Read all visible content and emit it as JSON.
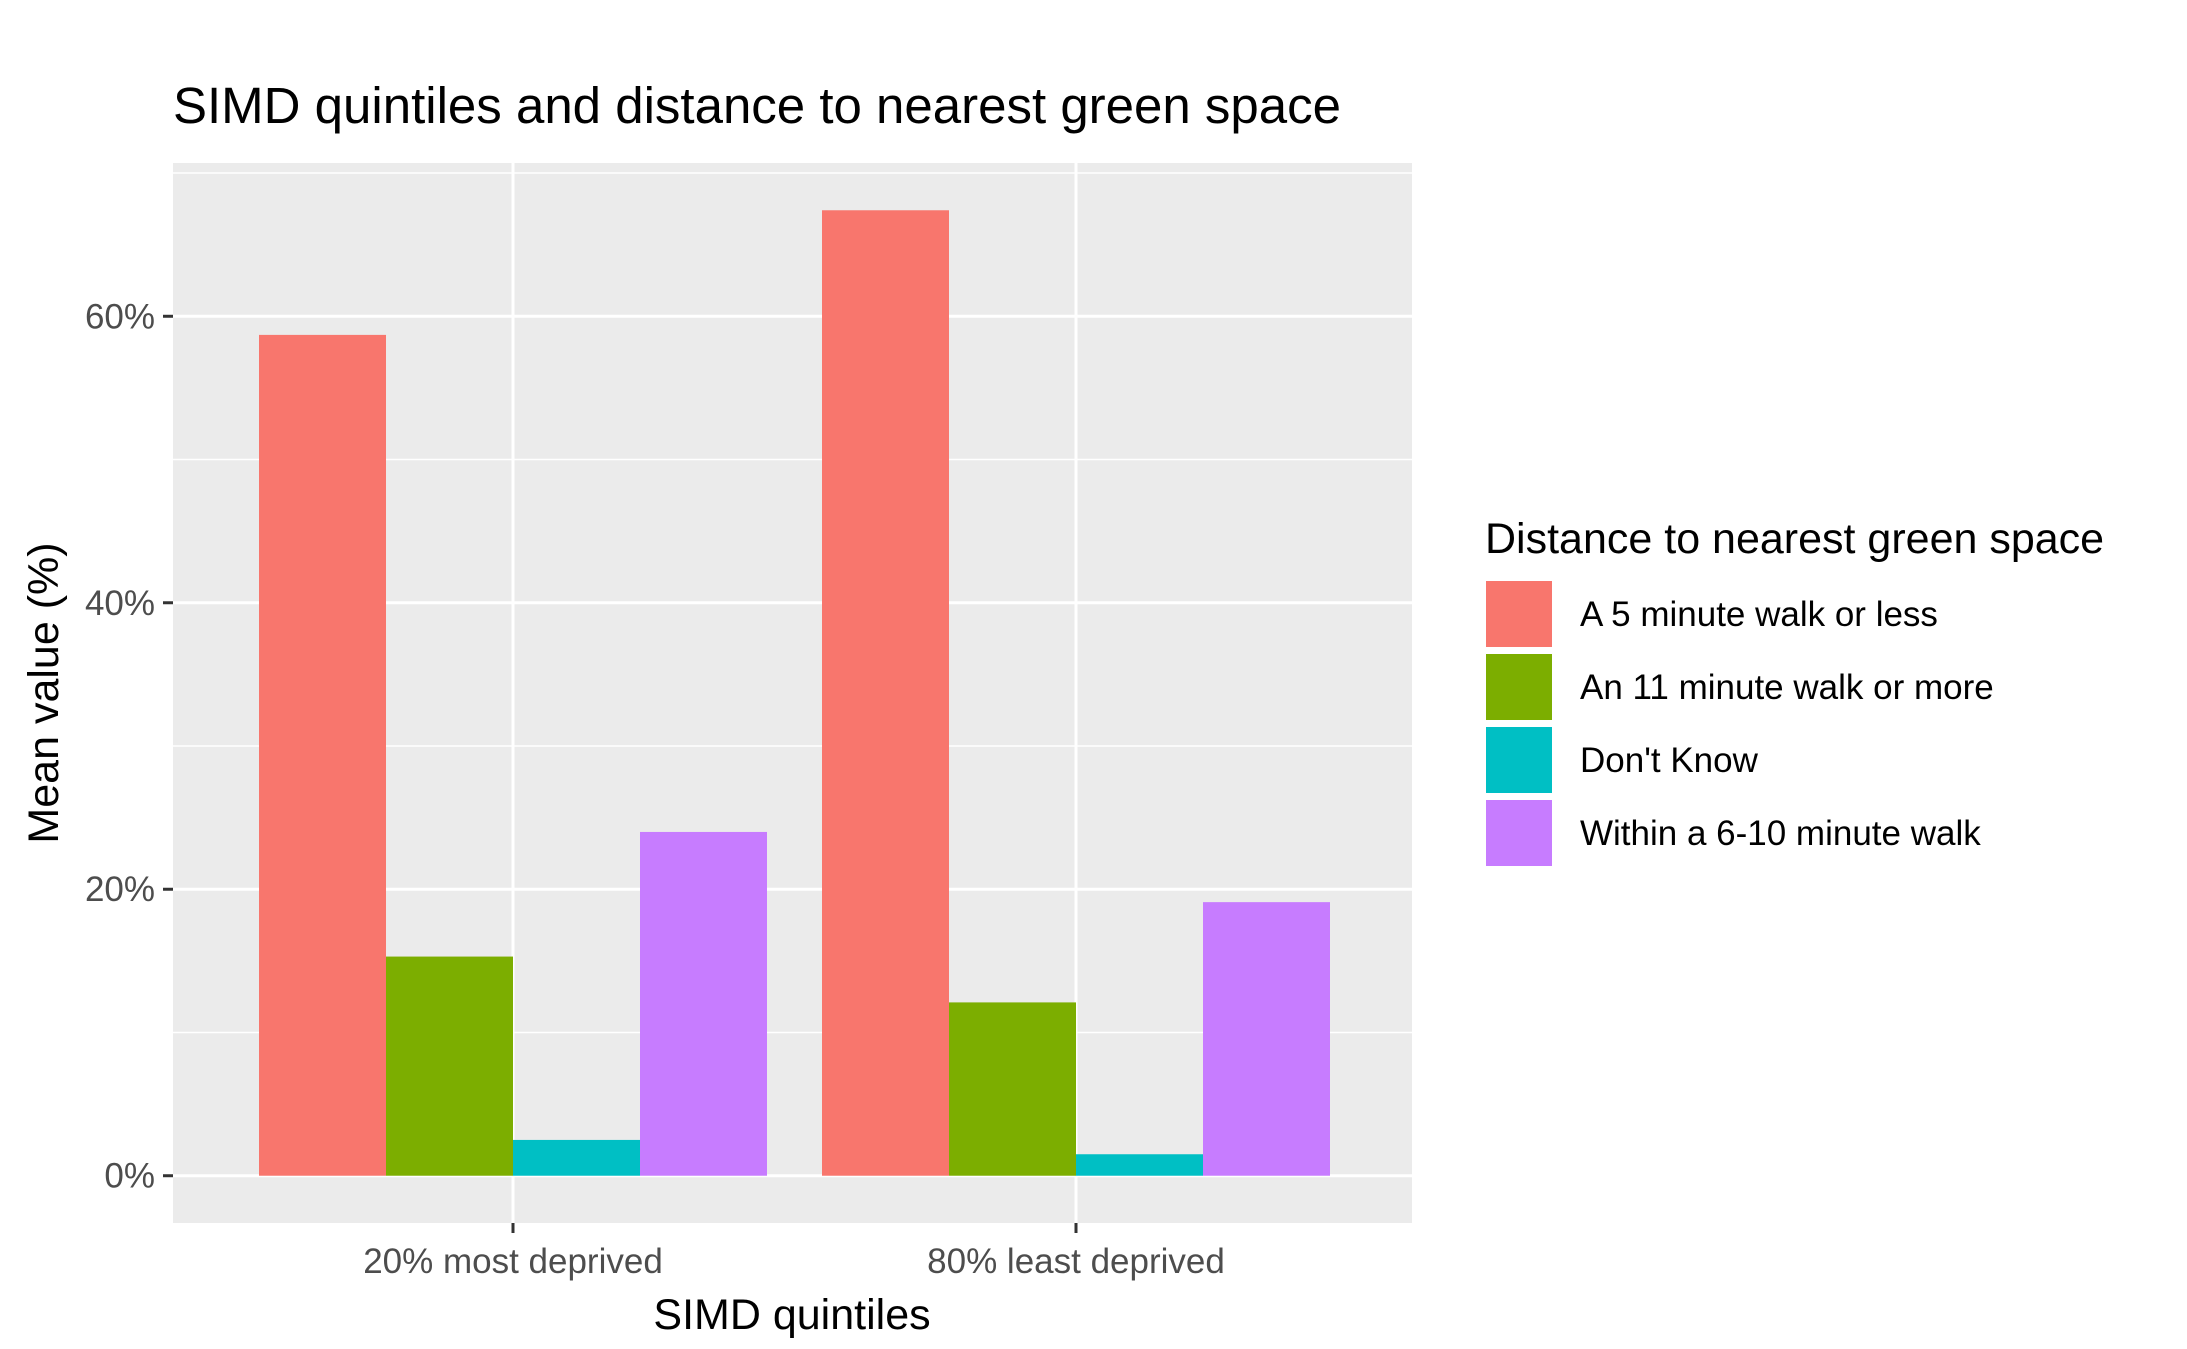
{
  "chart_data": {
    "type": "bar",
    "title": "SIMD quintiles and distance to nearest green space",
    "xlabel": "SIMD quintiles",
    "ylabel": "Mean value (%)",
    "categories": [
      "20% most deprived",
      "80% least deprived"
    ],
    "series": [
      {
        "name": "A 5 minute walk or less",
        "color": "#F8766D",
        "values": [
          58.7,
          67.4
        ]
      },
      {
        "name": "An 11 minute walk or more",
        "color": "#7CAE00",
        "values": [
          15.3,
          12.1
        ]
      },
      {
        "name": "Don't Know",
        "color": "#00BFC4",
        "values": [
          2.5,
          1.5
        ]
      },
      {
        "name": "Within a 6-10 minute walk",
        "color": "#C77CFF",
        "values": [
          24.0,
          19.1
        ]
      }
    ],
    "ylim": [
      -3.3,
      70.7
    ],
    "yticks": [
      0,
      20,
      40,
      60
    ],
    "ytick_labels": [
      "0%",
      "20%",
      "40%",
      "60%"
    ],
    "legend": {
      "title": "Distance to nearest green space",
      "position": "right"
    },
    "grid": true,
    "panel_background": "#EBEBEB"
  }
}
